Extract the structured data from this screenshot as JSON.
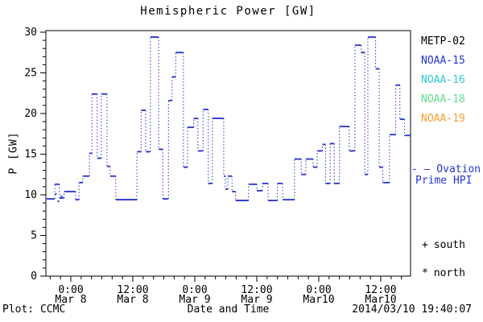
{
  "title": "Hemispheric Power [GW]",
  "footer": {
    "credit": "Plot: CCMC",
    "timestamp": "2014/03/10 19:40:07"
  },
  "legend": {
    "satellites": [
      {
        "label": "METP-02",
        "color": "#000000"
      },
      {
        "label": "NOAA-15",
        "color": "#2433cf"
      },
      {
        "label": "NOAA-16",
        "color": "#30c9cf"
      },
      {
        "label": "NOAA-18",
        "color": "#5fdf8f"
      },
      {
        "label": "NOAA-19",
        "color": "#ff9d2e"
      }
    ],
    "model": {
      "line1": "- — Ovation",
      "line2": "Prime HPI",
      "color": "#2433cf"
    },
    "markers": [
      {
        "symbol": "+",
        "label": "south"
      },
      {
        "symbol": "*",
        "label": "north"
      }
    ]
  },
  "chart_data": {
    "type": "line",
    "subtype": "step-post, solid horizontal segments with dotted vertical connectors",
    "title": "Hemispheric Power [GW]",
    "xlabel": "Date and Time",
    "ylabel": "P [GW]",
    "ylim": [
      0,
      30
    ],
    "y_major_ticks": [
      0,
      5,
      10,
      15,
      20,
      25,
      30
    ],
    "y_minor_step": 1,
    "x_unit": "hours since 2014 Mar 8 00:00",
    "xlim": [
      -4.8,
      65.7
    ],
    "x_minor_step_hours": 2,
    "x_major_ticks": [
      {
        "hours": 0,
        "time": "0:00",
        "date": "Mar 8"
      },
      {
        "hours": 12,
        "time": "12:00",
        "date": "Mar 8"
      },
      {
        "hours": 24,
        "time": "0:00",
        "date": "Mar 9"
      },
      {
        "hours": 36,
        "time": "12:00",
        "date": "Mar 9"
      },
      {
        "hours": 48,
        "time": "0:00",
        "date": "Mar10"
      },
      {
        "hours": 60,
        "time": "12:00",
        "date": "Mar10"
      }
    ],
    "grid": false,
    "legend_position": "right-outside",
    "series": [
      {
        "name": "Ovation Prime HPI",
        "color": "#2433cf",
        "points": [
          [
            -4.7,
            9.5
          ],
          [
            -3.1,
            11.3
          ],
          [
            -2.2,
            9.6
          ],
          [
            -1.3,
            10.4
          ],
          [
            0.9,
            9.4
          ],
          [
            1.6,
            11.5
          ],
          [
            2.3,
            12.3
          ],
          [
            3.6,
            15.1
          ],
          [
            4.1,
            22.4
          ],
          [
            5.1,
            14.5
          ],
          [
            5.9,
            22.4
          ],
          [
            7.0,
            13.5
          ],
          [
            7.6,
            12.3
          ],
          [
            8.7,
            9.4
          ],
          [
            12.8,
            15.3
          ],
          [
            13.6,
            20.4
          ],
          [
            14.5,
            15.3
          ],
          [
            15.4,
            29.4
          ],
          [
            17.0,
            15.6
          ],
          [
            17.8,
            9.5
          ],
          [
            18.9,
            21.6
          ],
          [
            19.6,
            24.5
          ],
          [
            20.3,
            27.5
          ],
          [
            21.8,
            13.4
          ],
          [
            22.6,
            18.3
          ],
          [
            23.8,
            19.4
          ],
          [
            24.6,
            15.4
          ],
          [
            25.6,
            20.5
          ],
          [
            26.6,
            11.4
          ],
          [
            27.4,
            19.4
          ],
          [
            29.6,
            12.3
          ],
          [
            29.9,
            10.7
          ],
          [
            30.4,
            12.3
          ],
          [
            31.2,
            10.4
          ],
          [
            31.9,
            9.3
          ],
          [
            34.4,
            11.3
          ],
          [
            36.0,
            10.5
          ],
          [
            37.1,
            11.4
          ],
          [
            38.2,
            9.3
          ],
          [
            40.0,
            11.4
          ],
          [
            41.0,
            9.4
          ],
          [
            43.3,
            14.4
          ],
          [
            44.6,
            12.5
          ],
          [
            45.5,
            14.4
          ],
          [
            46.9,
            13.4
          ],
          [
            47.7,
            15.4
          ],
          [
            48.7,
            16.2
          ],
          [
            49.3,
            11.4
          ],
          [
            50.2,
            16.3
          ],
          [
            51.0,
            11.4
          ],
          [
            52.0,
            18.4
          ],
          [
            53.9,
            15.4
          ],
          [
            55.0,
            28.4
          ],
          [
            56.2,
            27.5
          ],
          [
            56.9,
            12.5
          ],
          [
            57.5,
            29.4
          ],
          [
            59.0,
            25.5
          ],
          [
            59.7,
            13.4
          ],
          [
            60.4,
            11.5
          ],
          [
            61.7,
            17.4
          ],
          [
            62.9,
            23.5
          ],
          [
            63.7,
            19.3
          ],
          [
            64.6,
            17.3
          ]
        ]
      }
    ],
    "extra_dots": [
      [
        -2.9,
        10.1
      ],
      [
        -2.4,
        9.2
      ],
      [
        -1.8,
        9.8
      ]
    ]
  }
}
